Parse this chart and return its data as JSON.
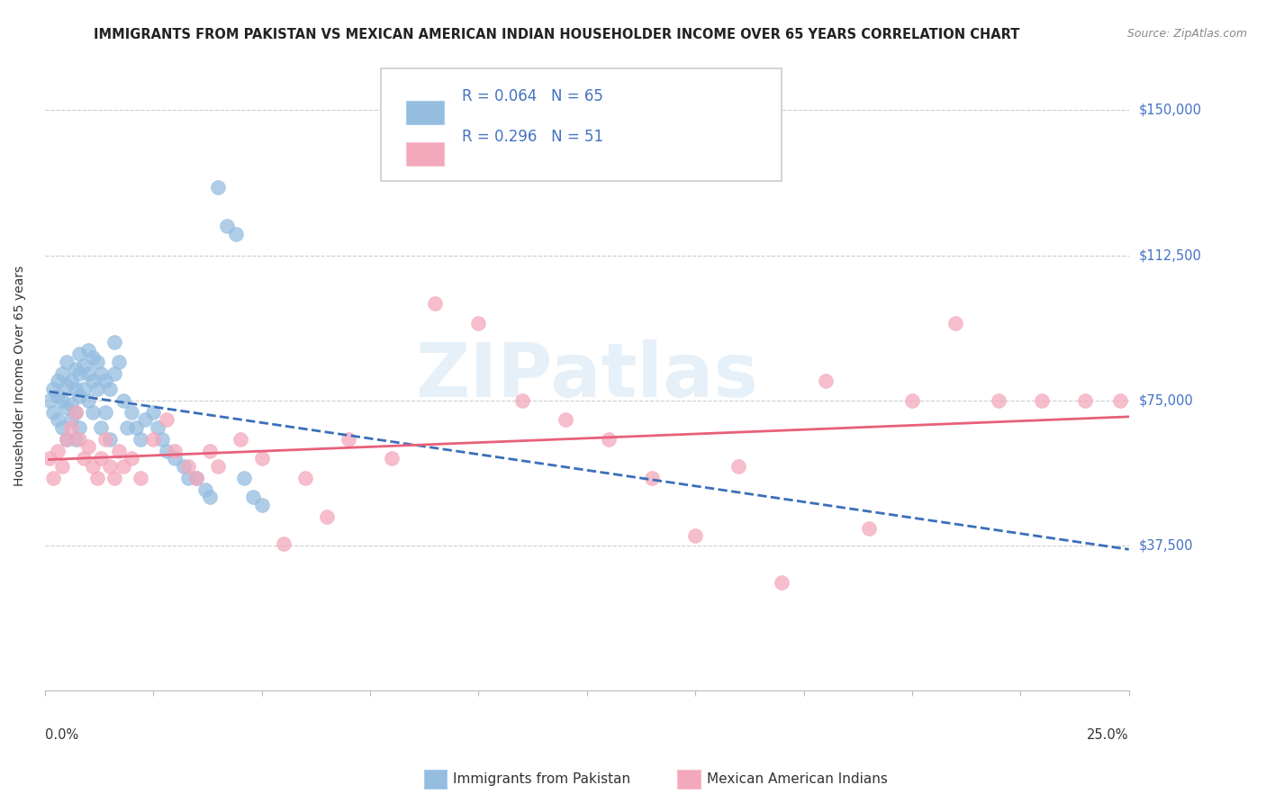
{
  "title": "IMMIGRANTS FROM PAKISTAN VS MEXICAN AMERICAN INDIAN HOUSEHOLDER INCOME OVER 65 YEARS CORRELATION CHART",
  "source": "Source: ZipAtlas.com",
  "ylabel": "Householder Income Over 65 years",
  "ytick_labels": [
    "$37,500",
    "$75,000",
    "$112,500",
    "$150,000"
  ],
  "ytick_values": [
    37500,
    75000,
    112500,
    150000
  ],
  "ylim": [
    0,
    162500
  ],
  "xlim": [
    0.0,
    0.25
  ],
  "legend1_R": "0.064",
  "legend1_N": "65",
  "legend2_R": "0.296",
  "legend2_N": "51",
  "pakistan_color": "#94bde0",
  "mexican_color": "#f4a8bb",
  "pakistan_line_color": "#3b6fba",
  "mexican_line_color": "#e8607a",
  "ytick_color": "#4472c4",
  "watermark": "ZIPatlas",
  "title_fontsize": 10.5,
  "axis_label_fontsize": 10,
  "tick_label_fontsize": 10.5,
  "background_color": "#ffffff",
  "grid_color": "#cccccc",
  "pakistan_x": [
    0.001,
    0.002,
    0.002,
    0.003,
    0.003,
    0.003,
    0.004,
    0.004,
    0.004,
    0.005,
    0.005,
    0.005,
    0.005,
    0.006,
    0.006,
    0.006,
    0.007,
    0.007,
    0.007,
    0.007,
    0.008,
    0.008,
    0.008,
    0.008,
    0.009,
    0.009,
    0.01,
    0.01,
    0.01,
    0.011,
    0.011,
    0.011,
    0.012,
    0.012,
    0.013,
    0.013,
    0.014,
    0.014,
    0.015,
    0.015,
    0.016,
    0.016,
    0.017,
    0.018,
    0.019,
    0.02,
    0.021,
    0.022,
    0.023,
    0.025,
    0.026,
    0.027,
    0.028,
    0.03,
    0.032,
    0.033,
    0.035,
    0.037,
    0.038,
    0.04,
    0.042,
    0.044,
    0.046,
    0.048,
    0.05
  ],
  "pakistan_y": [
    75000,
    78000,
    72000,
    80000,
    76000,
    70000,
    82000,
    75000,
    68000,
    85000,
    79000,
    73000,
    65000,
    80000,
    74000,
    70000,
    83000,
    78000,
    72000,
    65000,
    87000,
    82000,
    76000,
    68000,
    84000,
    78000,
    88000,
    82000,
    75000,
    86000,
    80000,
    72000,
    85000,
    78000,
    82000,
    68000,
    80000,
    72000,
    78000,
    65000,
    90000,
    82000,
    85000,
    75000,
    68000,
    72000,
    68000,
    65000,
    70000,
    72000,
    68000,
    65000,
    62000,
    60000,
    58000,
    55000,
    55000,
    52000,
    50000,
    130000,
    120000,
    118000,
    55000,
    50000,
    48000
  ],
  "mexican_x": [
    0.001,
    0.002,
    0.003,
    0.004,
    0.005,
    0.006,
    0.007,
    0.008,
    0.009,
    0.01,
    0.011,
    0.012,
    0.013,
    0.014,
    0.015,
    0.016,
    0.017,
    0.018,
    0.02,
    0.022,
    0.025,
    0.028,
    0.03,
    0.033,
    0.035,
    0.038,
    0.04,
    0.045,
    0.05,
    0.055,
    0.06,
    0.065,
    0.07,
    0.08,
    0.09,
    0.1,
    0.11,
    0.12,
    0.13,
    0.14,
    0.15,
    0.16,
    0.17,
    0.18,
    0.19,
    0.2,
    0.21,
    0.22,
    0.23,
    0.24,
    0.248
  ],
  "mexican_y": [
    60000,
    55000,
    62000,
    58000,
    65000,
    68000,
    72000,
    65000,
    60000,
    63000,
    58000,
    55000,
    60000,
    65000,
    58000,
    55000,
    62000,
    58000,
    60000,
    55000,
    65000,
    70000,
    62000,
    58000,
    55000,
    62000,
    58000,
    65000,
    60000,
    38000,
    55000,
    45000,
    65000,
    60000,
    100000,
    95000,
    75000,
    70000,
    65000,
    55000,
    40000,
    58000,
    28000,
    80000,
    42000,
    75000,
    95000,
    75000,
    75000,
    75000,
    75000
  ]
}
